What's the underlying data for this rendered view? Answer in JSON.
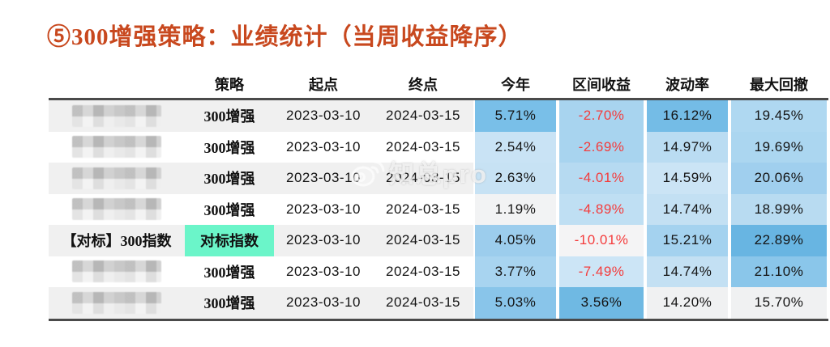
{
  "title": "⑤300增强策略：业绩统计（当周收益降序）",
  "watermark": {
    "icon": "weibo-icon",
    "text": "知总pro"
  },
  "colors": {
    "title": "#C8481E",
    "negative_text": "#F43B3B",
    "row_stripe": "#F0F0F0",
    "table_rule": "#4A4A4A",
    "benchmark_highlight": "#6BF5C9",
    "heat_dark": "#68B5E2",
    "heat_light": "#F2F3F4"
  },
  "chart_data": {
    "type": "table",
    "title": "⑤300增强策略：业绩统计（当周收益降序）",
    "sort_note": "当周收益降序",
    "columns": [
      "策略",
      "起点",
      "终点",
      "今年",
      "区间收益",
      "波动率",
      "最大回撤"
    ],
    "rows": [
      {
        "name": "",
        "name_masked": true,
        "strategy": "300增强",
        "strategy_highlight": false,
        "start": "2023-03-10",
        "end": "2024-03-15",
        "ytd": "5.71%",
        "interval_return": "-2.70%",
        "volatility": "16.12%",
        "max_drawdown": "19.45%",
        "cell_colors": [
          "#79BFE8",
          "#A8D4EF",
          "#74BCE6",
          "#AFD8F1"
        ]
      },
      {
        "name": "",
        "name_masked": true,
        "strategy": "300增强",
        "strategy_highlight": false,
        "start": "2023-03-10",
        "end": "2024-03-15",
        "ytd": "2.54%",
        "interval_return": "-2.69%",
        "volatility": "14.97%",
        "max_drawdown": "19.69%",
        "cell_colors": [
          "#C9E3F5",
          "#A8D4EF",
          "#BADCF2",
          "#ABD6F0"
        ]
      },
      {
        "name": "",
        "name_masked": true,
        "strategy": "300增强",
        "strategy_highlight": false,
        "start": "2023-03-10",
        "end": "2024-03-15",
        "ytd": "2.63%",
        "interval_return": "-4.01%",
        "volatility": "14.59%",
        "max_drawdown": "20.06%",
        "cell_colors": [
          "#C7E2F4",
          "#B6DAF1",
          "#CBE4F5",
          "#A0CFEE"
        ]
      },
      {
        "name": "",
        "name_masked": true,
        "strategy": "300增强",
        "strategy_highlight": false,
        "start": "2023-03-10",
        "end": "2024-03-15",
        "ytd": "1.19%",
        "interval_return": "-4.89%",
        "volatility": "14.74%",
        "max_drawdown": "18.99%",
        "cell_colors": [
          "#F2F3F4",
          "#BFDFF3",
          "#C3E0F3",
          "#B8DBF1"
        ]
      },
      {
        "name": "【对标】300指数",
        "name_masked": false,
        "strategy": "对标指数",
        "strategy_highlight": true,
        "start": "2023-03-10",
        "end": "2024-03-15",
        "ytd": "4.05%",
        "interval_return": "-10.01%",
        "volatility": "15.21%",
        "max_drawdown": "22.89%",
        "cell_colors": [
          "#9CCDED",
          "#F4F4F5",
          "#A4D2EF",
          "#68B5E2"
        ]
      },
      {
        "name": "",
        "name_masked": true,
        "strategy": "300增强",
        "strategy_highlight": false,
        "start": "2023-03-10",
        "end": "2024-03-15",
        "ytd": "3.77%",
        "interval_return": "-7.49%",
        "volatility": "14.74%",
        "max_drawdown": "21.10%",
        "cell_colors": [
          "#A8D4F0",
          "#CCE5F6",
          "#C3E0F3",
          "#8AC6EA"
        ]
      },
      {
        "name": "",
        "name_masked": true,
        "strategy": "300增强",
        "strategy_highlight": false,
        "start": "2023-03-10",
        "end": "2024-03-15",
        "ytd": "5.03%",
        "interval_return": "3.56%",
        "volatility": "14.20%",
        "max_drawdown": "15.70%",
        "cell_colors": [
          "#89C5EA",
          "#6FB9E3",
          "#F0F1F2",
          "#F0F1F2"
        ]
      }
    ]
  }
}
